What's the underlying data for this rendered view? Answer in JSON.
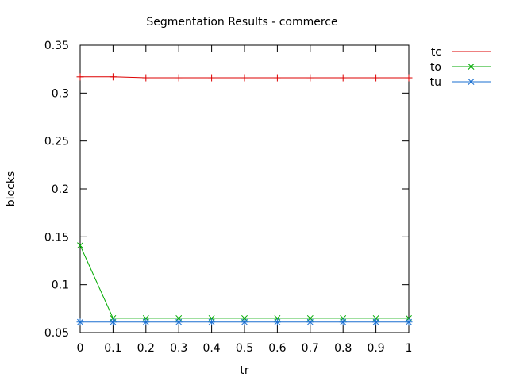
{
  "chart_data": {
    "type": "line",
    "title": "Segmentation Results - commerce",
    "xlabel": "tr",
    "ylabel": "blocks",
    "xlim": [
      0,
      1
    ],
    "ylim": [
      0.05,
      0.35
    ],
    "x_ticks": [
      "0",
      "0.1",
      "0.2",
      "0.3",
      "0.4",
      "0.5",
      "0.6",
      "0.7",
      "0.8",
      "0.9",
      "1"
    ],
    "y_ticks": [
      "0.05",
      "0.1",
      "0.15",
      "0.2",
      "0.25",
      "0.3",
      "0.35"
    ],
    "x": [
      0,
      0.1,
      0.2,
      0.3,
      0.4,
      0.5,
      0.6,
      0.7,
      0.8,
      0.9,
      1.0
    ],
    "grid": false,
    "legend_position": "top-right outside",
    "series": [
      {
        "name": "tc",
        "color": "#dd0000",
        "marker": "plus",
        "values": [
          0.317,
          0.317,
          0.316,
          0.316,
          0.316,
          0.316,
          0.316,
          0.316,
          0.316,
          0.316,
          0.316
        ]
      },
      {
        "name": "to",
        "color": "#00aa00",
        "marker": "cross",
        "values": [
          0.141,
          0.065,
          0.065,
          0.065,
          0.065,
          0.065,
          0.065,
          0.065,
          0.065,
          0.065,
          0.065
        ]
      },
      {
        "name": "tu",
        "color": "#1a6fd0",
        "marker": "star",
        "values": [
          0.061,
          0.061,
          0.061,
          0.061,
          0.061,
          0.061,
          0.061,
          0.061,
          0.061,
          0.061,
          0.061
        ]
      }
    ]
  }
}
